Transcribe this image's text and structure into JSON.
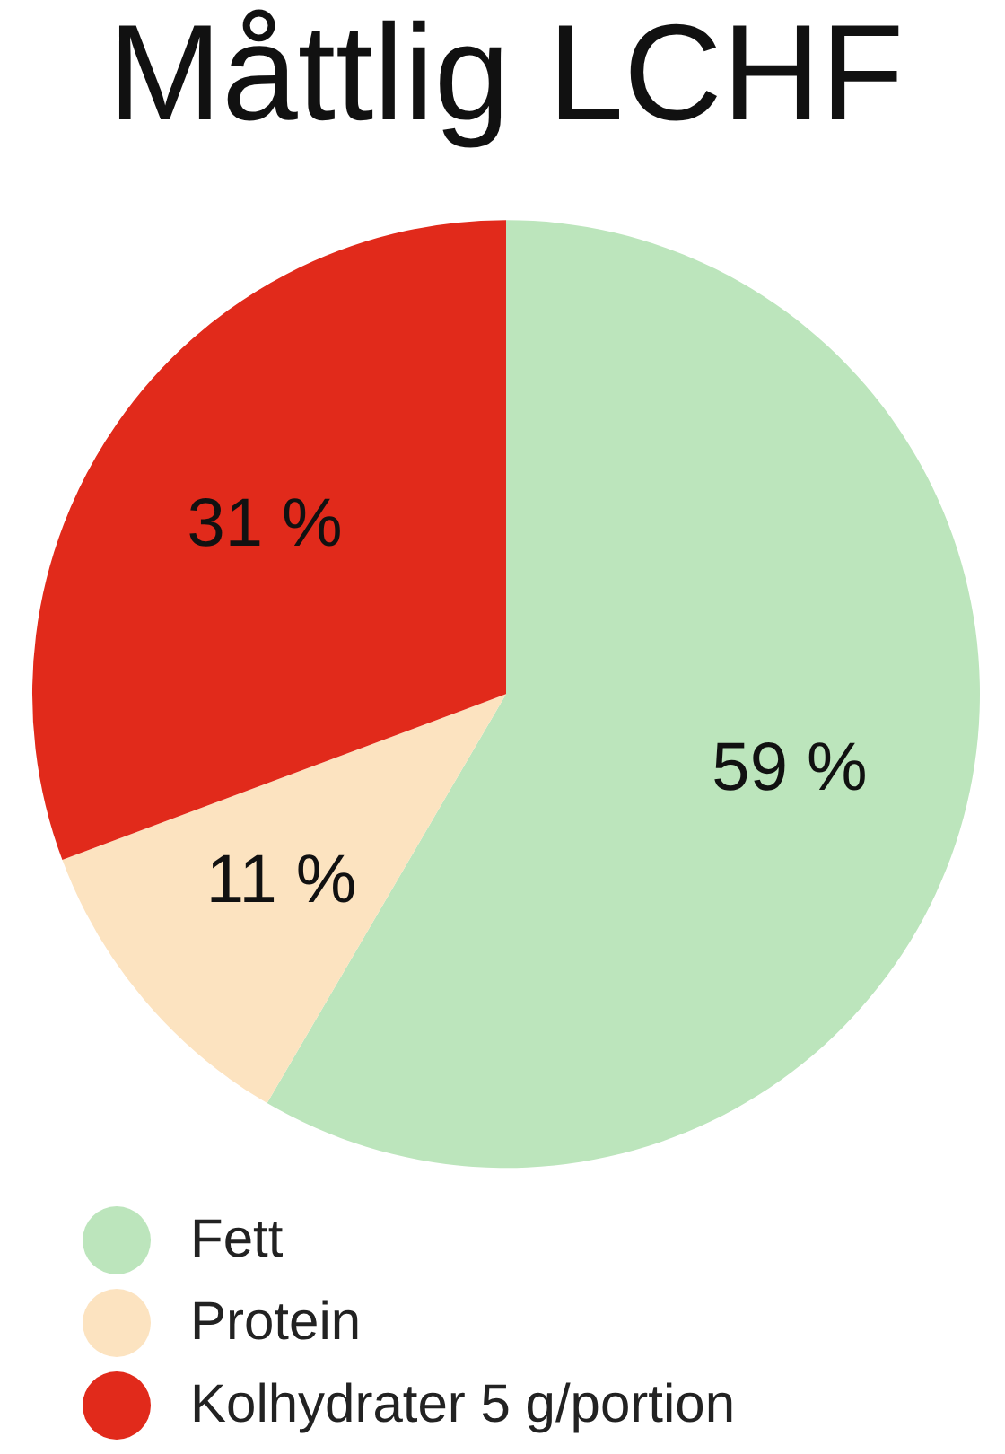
{
  "chart_data": {
    "type": "pie",
    "title": "Måttlig LCHF",
    "categories": [
      "Fett",
      "Protein",
      "Kolhydrater 5 g/portion"
    ],
    "values": [
      59,
      11,
      31
    ],
    "value_labels": [
      "59 %",
      "11 %",
      "31 %"
    ],
    "colors": [
      "#bce5bc",
      "#fce3c0",
      "#e12a1b"
    ],
    "legend": "bottom"
  }
}
